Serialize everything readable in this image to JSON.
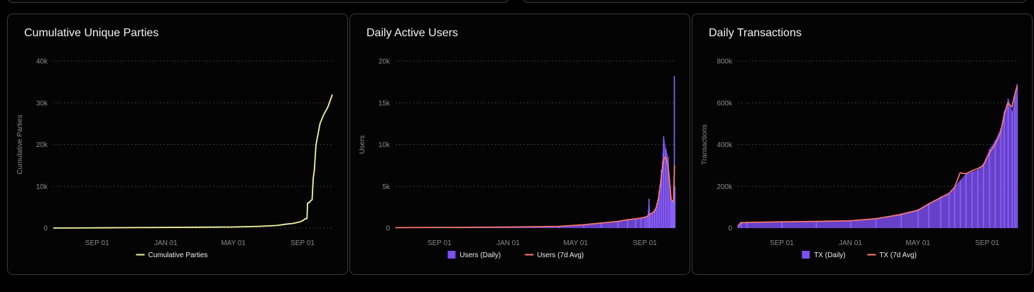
{
  "chart_data": [
    {
      "type": "line",
      "title": "Cumulative Unique Parties",
      "ylabel": "Cumulative Parties",
      "ylim": [
        0,
        40000
      ],
      "yticks": [
        0,
        10000,
        20000,
        30000,
        40000
      ],
      "ytick_labels": [
        "0",
        "10k",
        "20k",
        "30k",
        "40k"
      ],
      "xlim": [
        "2024-06-15",
        "2025-10-24"
      ],
      "xticks": [
        "2024-09-01",
        "2025-01-01",
        "2025-05-01",
        "2025-09-01"
      ],
      "xtick_labels": [
        "SEP 01",
        "JAN 01",
        "MAY 01",
        "SEP 01"
      ],
      "grid": true,
      "legend_position": "bottom",
      "colors": {
        "line": "#f3f5a0"
      },
      "series": [
        {
          "name": "Cumulative Parties",
          "x": [
            "2024-06-15",
            "2024-09-01",
            "2024-11-01",
            "2025-01-01",
            "2025-03-01",
            "2025-05-01",
            "2025-06-15",
            "2025-07-15",
            "2025-07-22",
            "2025-08-01",
            "2025-08-15",
            "2025-08-28",
            "2025-09-03",
            "2025-09-05",
            "2025-09-09",
            "2025-09-10",
            "2025-09-13",
            "2025-09-15",
            "2025-09-18",
            "2025-09-20",
            "2025-09-22",
            "2025-09-25",
            "2025-10-02",
            "2025-10-08",
            "2025-10-12",
            "2025-10-16",
            "2025-10-20",
            "2025-10-24"
          ],
          "y": [
            0,
            50,
            100,
            150,
            200,
            250,
            400,
            600,
            700,
            900,
            1100,
            1500,
            1900,
            2200,
            2300,
            6000,
            6100,
            6500,
            6800,
            12000,
            13800,
            20000,
            25000,
            27000,
            28000,
            29000,
            30500,
            32000
          ]
        }
      ]
    },
    {
      "type": "bar",
      "title": "Daily Active Users",
      "ylabel": "Users",
      "ylim": [
        0,
        20000
      ],
      "yticks": [
        0,
        5000,
        10000,
        15000,
        20000
      ],
      "ytick_labels": [
        "0",
        "5k",
        "10k",
        "15k",
        "20k"
      ],
      "xlim": [
        "2024-06-15",
        "2025-10-24"
      ],
      "xticks": [
        "2024-09-01",
        "2025-01-01",
        "2025-05-01",
        "2025-09-01"
      ],
      "xtick_labels": [
        "SEP 01",
        "JAN 01",
        "MAY 01",
        "SEP 01"
      ],
      "grid": true,
      "legend_position": "bottom",
      "colors": {
        "bars": "#7b4ff0",
        "avg": "#ff7a6b"
      },
      "series": [
        {
          "name": "Users (Daily)",
          "kind": "bar",
          "x": [
            "2024-06-15",
            "2024-09-01",
            "2025-01-01",
            "2025-04-01",
            "2025-05-15",
            "2025-06-15",
            "2025-07-15",
            "2025-08-01",
            "2025-08-15",
            "2025-08-25",
            "2025-09-01",
            "2025-09-05",
            "2025-09-08",
            "2025-09-10",
            "2025-09-14",
            "2025-09-18",
            "2025-09-22",
            "2025-09-26",
            "2025-09-30",
            "2025-10-04",
            "2025-10-08",
            "2025-10-12",
            "2025-10-16",
            "2025-10-18",
            "2025-10-20",
            "2025-10-22",
            "2025-10-23",
            "2025-10-24"
          ],
          "y": [
            50,
            80,
            120,
            200,
            400,
            600,
            800,
            1000,
            1100,
            1200,
            1300,
            1500,
            3500,
            1700,
            1900,
            2200,
            3000,
            4500,
            7000,
            11000,
            9500,
            8500,
            5000,
            3200,
            3300,
            3500,
            18200,
            5000
          ]
        },
        {
          "name": "Users (7d Avg)",
          "kind": "line",
          "x": [
            "2024-06-15",
            "2024-09-01",
            "2025-01-01",
            "2025-04-01",
            "2025-05-15",
            "2025-06-15",
            "2025-07-15",
            "2025-08-01",
            "2025-08-15",
            "2025-08-25",
            "2025-09-01",
            "2025-09-05",
            "2025-09-08",
            "2025-09-10",
            "2025-09-14",
            "2025-09-18",
            "2025-09-22",
            "2025-09-26",
            "2025-09-30",
            "2025-10-04",
            "2025-10-08",
            "2025-10-12",
            "2025-10-16",
            "2025-10-18",
            "2025-10-20",
            "2025-10-22",
            "2025-10-23",
            "2025-10-24"
          ],
          "y": [
            50,
            80,
            120,
            200,
            400,
            600,
            800,
            1000,
            1100,
            1200,
            1300,
            1400,
            1600,
            1700,
            1800,
            2000,
            2600,
            3800,
            6000,
            8200,
            8500,
            7500,
            4800,
            3400,
            3200,
            3400,
            6000,
            7500
          ]
        }
      ]
    },
    {
      "type": "bar",
      "title": "Daily Transactions",
      "ylabel": "Transactions",
      "ylim": [
        0,
        800000
      ],
      "yticks": [
        0,
        200000,
        400000,
        600000,
        800000
      ],
      "ytick_labels": [
        "0",
        "200k",
        "400k",
        "600k",
        "800k"
      ],
      "xlim": [
        "2024-06-15",
        "2025-10-24"
      ],
      "xticks": [
        "2024-09-01",
        "2025-01-01",
        "2025-05-01",
        "2025-09-01"
      ],
      "xtick_labels": [
        "SEP 01",
        "JAN 01",
        "MAY 01",
        "SEP 01"
      ],
      "grid": true,
      "legend_position": "bottom",
      "colors": {
        "bars": "#7b4ff0",
        "avg": "#ff7a6b"
      },
      "series": [
        {
          "name": "TX (Daily)",
          "kind": "bar",
          "x": [
            "2024-06-15",
            "2024-06-20",
            "2024-07-01",
            "2024-09-01",
            "2024-11-01",
            "2025-01-01",
            "2025-02-15",
            "2025-04-01",
            "2025-05-01",
            "2025-05-20",
            "2025-06-10",
            "2025-06-25",
            "2025-07-05",
            "2025-07-15",
            "2025-07-25",
            "2025-08-05",
            "2025-08-15",
            "2025-08-25",
            "2025-09-05",
            "2025-09-15",
            "2025-09-25",
            "2025-10-01",
            "2025-10-08",
            "2025-10-15",
            "2025-10-20",
            "2025-10-24"
          ],
          "y": [
            10000,
            30000,
            28000,
            30000,
            32000,
            35000,
            45000,
            70000,
            90000,
            120000,
            150000,
            170000,
            200000,
            230000,
            260000,
            270000,
            280000,
            310000,
            380000,
            420000,
            480000,
            560000,
            620000,
            560000,
            640000,
            690000
          ]
        },
        {
          "name": "TX (7d Avg)",
          "kind": "line",
          "x": [
            "2024-06-15",
            "2024-06-20",
            "2024-07-01",
            "2024-09-01",
            "2024-11-01",
            "2025-01-01",
            "2025-02-15",
            "2025-04-01",
            "2025-05-01",
            "2025-05-20",
            "2025-06-10",
            "2025-06-25",
            "2025-07-05",
            "2025-07-15",
            "2025-07-25",
            "2025-08-05",
            "2025-08-15",
            "2025-08-25",
            "2025-09-05",
            "2025-09-15",
            "2025-09-25",
            "2025-10-01",
            "2025-10-08",
            "2025-10-15",
            "2025-10-20",
            "2025-10-24"
          ],
          "y": [
            10000,
            25000,
            27000,
            30000,
            32000,
            35000,
            45000,
            65000,
            85000,
            115000,
            145000,
            165000,
            195000,
            265000,
            260000,
            275000,
            285000,
            300000,
            360000,
            400000,
            460000,
            540000,
            600000,
            580000,
            640000,
            680000
          ]
        }
      ]
    }
  ]
}
